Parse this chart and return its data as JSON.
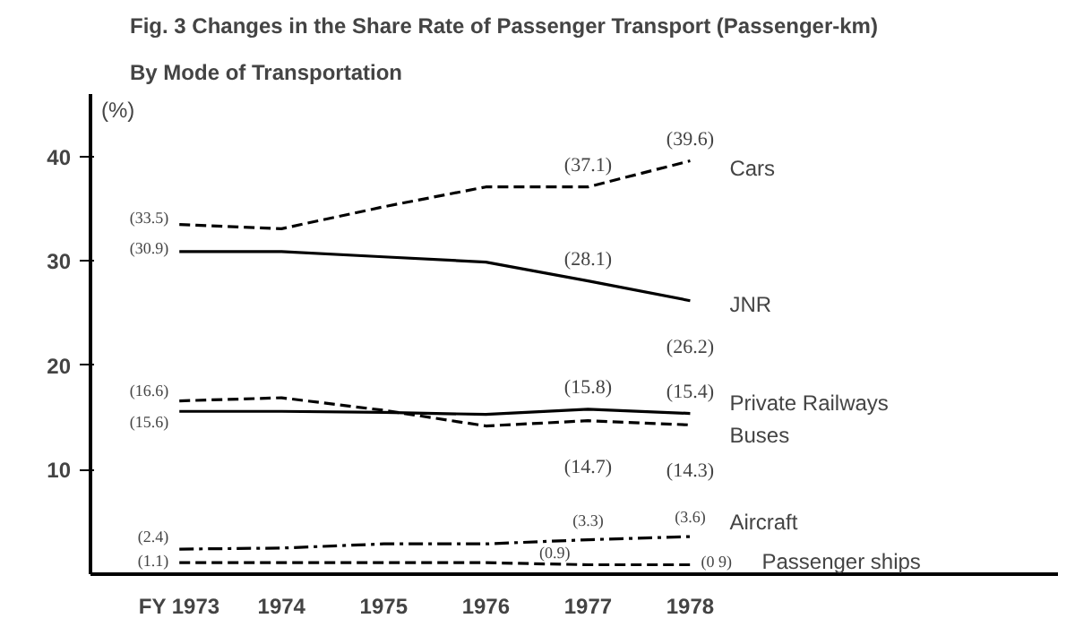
{
  "chart_data": {
    "type": "line",
    "title": "Fig. 3   Changes in the Share Rate of Passenger Transport (Passenger-km)",
    "subtitle": "By Mode of Transportation",
    "ylabel": "(%)",
    "x": [
      1973,
      1974,
      1975,
      1976,
      1977,
      1978
    ],
    "xlim": [
      1972.13,
      1981.6
    ],
    "xticks": [
      {
        "value": 1973,
        "label": "FY 1973"
      },
      1974,
      1975,
      1976,
      1977,
      1978
    ],
    "ylim": [
      0,
      46
    ],
    "yticks": [
      10,
      20,
      30,
      40
    ],
    "grid": false,
    "legend": false,
    "series": [
      {
        "name": "Cars",
        "color": "#000000",
        "line_style": "dashed",
        "values": [
          33.5,
          33.1,
          35.2,
          37.1,
          37.1,
          39.6
        ],
        "value_labels": [
          "(33.5)",
          null,
          null,
          null,
          "(37.1)",
          "(39.6)"
        ]
      },
      {
        "name": "JNR",
        "color": "#000000",
        "line_style": "solid",
        "values": [
          30.9,
          30.9,
          30.4,
          29.9,
          28.1,
          26.2
        ],
        "value_labels": [
          "(30.9)",
          null,
          null,
          null,
          "(28.1)",
          "(26.2)"
        ]
      },
      {
        "name": "Private Railways",
        "color": "#000000",
        "line_style": "solid",
        "values": [
          15.6,
          15.6,
          15.5,
          15.3,
          15.8,
          15.4
        ],
        "value_labels": [
          "(15.6)",
          null,
          null,
          null,
          "(15.8)",
          "(15.4)"
        ]
      },
      {
        "name": "Buses",
        "color": "#000000",
        "line_style": "dashed",
        "values": [
          16.6,
          16.9,
          15.7,
          14.2,
          14.7,
          14.3
        ],
        "value_labels": [
          "(16.6)",
          null,
          null,
          null,
          "(14.7)",
          "(14.3)"
        ]
      },
      {
        "name": "Aircraft",
        "color": "#000000",
        "line_style": "dashdot",
        "values": [
          2.4,
          2.5,
          2.9,
          2.9,
          3.3,
          3.6
        ],
        "value_labels": [
          "(2.4)",
          null,
          null,
          null,
          "(3.3)",
          "(3.6)"
        ]
      },
      {
        "name": "Passenger ships",
        "color": "#000000",
        "line_style": "dashed",
        "values": [
          1.1,
          1.1,
          1.1,
          1.1,
          0.9,
          0.9
        ],
        "value_labels": [
          "(1.1)",
          null,
          null,
          null,
          "(0.9)",
          "(0 9)"
        ]
      }
    ]
  }
}
